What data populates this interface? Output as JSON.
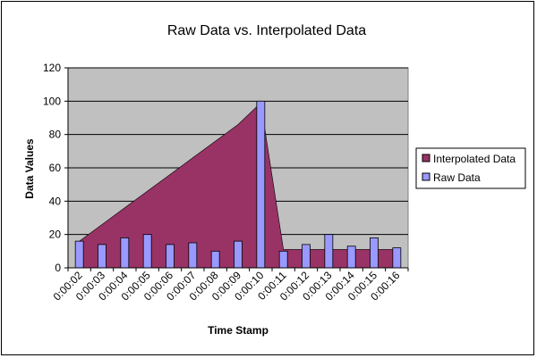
{
  "chart_data": {
    "type": "bar",
    "title": "Raw Data vs. Interpolated Data",
    "xlabel": "Time Stamp",
    "ylabel": "Data Values",
    "ylim": [
      0,
      120
    ],
    "yticks": [
      0,
      20,
      40,
      60,
      80,
      100,
      120
    ],
    "grid": true,
    "legend_position": "right",
    "categories": [
      "0:00:02",
      "0:00:03",
      "0:00:04",
      "0:00:05",
      "0:00:06",
      "0:00:07",
      "0:00:08",
      "0:00:09",
      "0:00:10",
      "0:00:11",
      "0:00:12",
      "0:00:13",
      "0:00:14",
      "0:00:15",
      "0:00:16"
    ],
    "series": [
      {
        "name": "Interpolated Data",
        "type": "area",
        "color": "#993366",
        "values": [
          16,
          26,
          36,
          46,
          56,
          66,
          76,
          86,
          99,
          11,
          11,
          11,
          11,
          11,
          11
        ]
      },
      {
        "name": "Raw Data",
        "type": "bar",
        "color": "#9999ff",
        "values": [
          16,
          14,
          18,
          20,
          14,
          15,
          10,
          16,
          100,
          10,
          14,
          20,
          13,
          18,
          12
        ]
      }
    ],
    "colors": {
      "plot_background": "#c0c0c0",
      "gridline": "#000000"
    }
  }
}
